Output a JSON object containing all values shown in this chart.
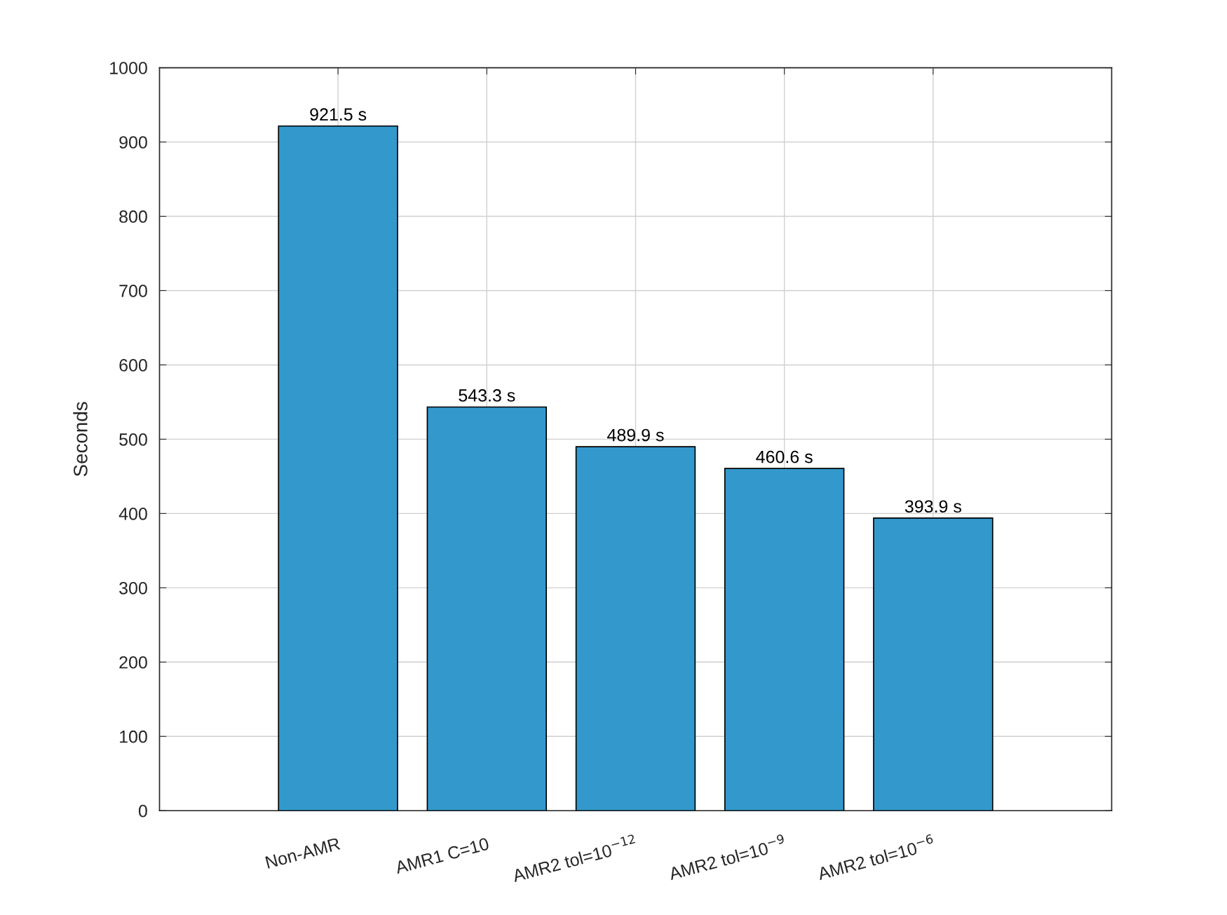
{
  "chart_data": {
    "type": "bar",
    "ylabel": "Seconds",
    "categories": [
      "Non-AMR",
      "AMR1 C=10",
      "AMR2 tol=10$^{−12}$",
      "AMR2 tol=10$^{−9}$",
      "AMR2 tol=10$^{−6}$"
    ],
    "values": [
      921.5,
      543.3,
      489.9,
      460.6,
      393.9
    ],
    "value_labels": [
      "921.5 s",
      "543.3 s",
      "489.9 s",
      "460.6 s",
      "393.9 s"
    ],
    "color": "#3399cc",
    "ylim": [
      0,
      1000
    ],
    "yticks": [
      0,
      100,
      200,
      300,
      400,
      500,
      600,
      700,
      800,
      900,
      1000
    ],
    "grid": true
  }
}
